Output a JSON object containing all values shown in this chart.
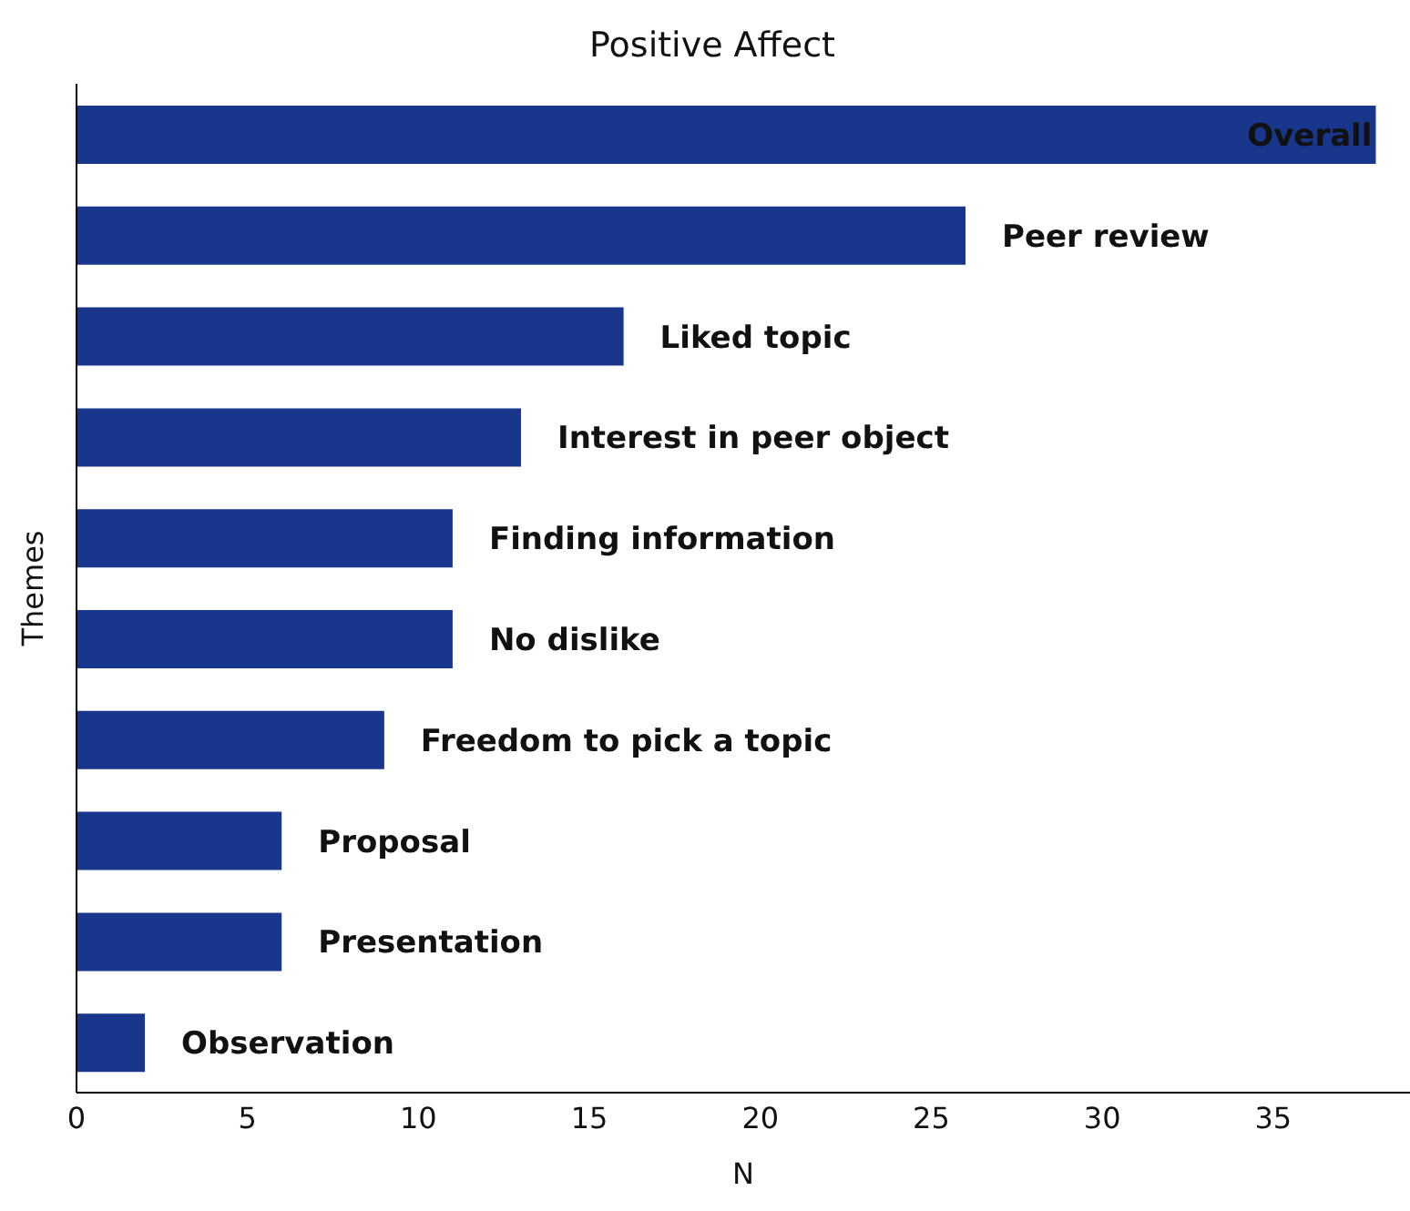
{
  "chart_data": {
    "type": "bar",
    "orientation": "horizontal",
    "title": "Positive Affect",
    "xlabel": "N",
    "ylabel": "Themes",
    "categories": [
      "Overall",
      "Peer review",
      "Liked topic",
      "Interest in peer object",
      "Finding information",
      "No dislike",
      "Freedom to pick a topic",
      "Proposal",
      "Presentation",
      "Observation"
    ],
    "values": [
      38,
      26,
      16,
      13,
      11,
      11,
      9,
      6,
      6,
      2
    ],
    "color": "#18368c",
    "xlim": [
      0,
      39
    ],
    "xticks": [
      0,
      5,
      10,
      15,
      20,
      25,
      30,
      35
    ],
    "tick_labels": "x",
    "grid": false,
    "legend": false
  }
}
